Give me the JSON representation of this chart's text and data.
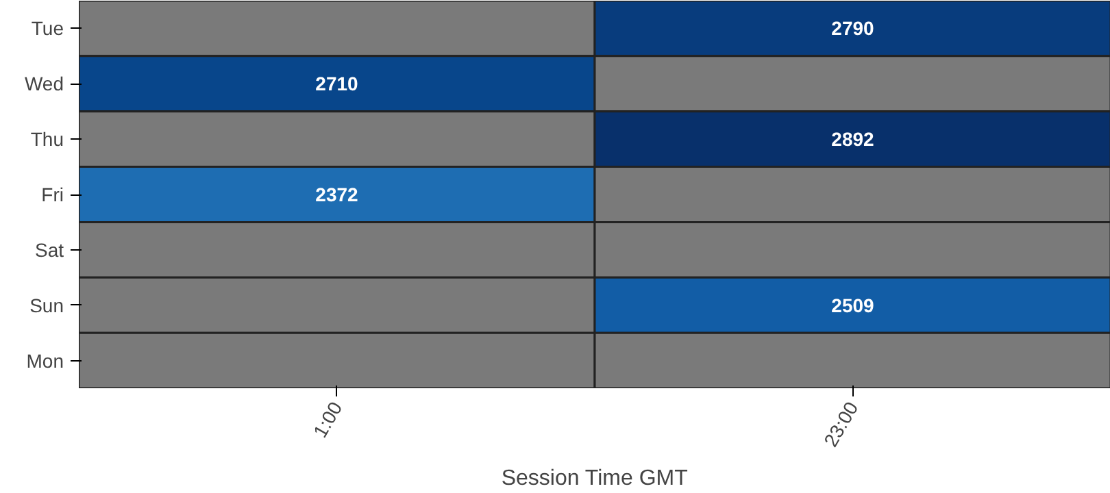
{
  "chart_data": {
    "type": "heatmap",
    "xlabel": "Session Time GMT",
    "categories": [
      "1:00",
      "23:00"
    ],
    "y_categories": [
      "Tue",
      "Wed",
      "Thu",
      "Fri",
      "Sat",
      "Sun",
      "Mon"
    ],
    "cells": [
      [
        null,
        2790
      ],
      [
        2710,
        null
      ],
      [
        null,
        2892
      ],
      [
        2372,
        null
      ],
      [
        null,
        null
      ],
      [
        null,
        2509
      ],
      [
        null,
        null
      ]
    ],
    "data_labels": true
  }
}
